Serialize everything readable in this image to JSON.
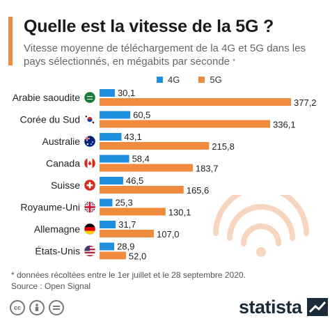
{
  "title": "Quelle est la vitesse de la 5G ?",
  "subtitle": "Vitesse moyenne de téléchargement de la 4G et 5G dans les pays sélectionnés, en mégabits par seconde",
  "subtitle_mark": "*",
  "colors": {
    "accent": "#f08a3c",
    "series_4g": "#1f8fe0",
    "series_5g": "#f08a3c"
  },
  "footnote": "* données récoltées entre le 1er juillet et le 28 septembre 2020.",
  "source": "Source : Open Signal",
  "brand": "statista",
  "chart_data": {
    "type": "bar",
    "orientation": "horizontal",
    "categories": [
      "Arabie saoudite",
      "Corée du Sud",
      "Australie",
      "Canada",
      "Suisse",
      "Royaume-Uni",
      "Allemagne",
      "États-Unis"
    ],
    "flags": [
      "saudi-arabia-flag-icon",
      "south-korea-flag-icon",
      "australia-flag-icon",
      "canada-flag-icon",
      "switzerland-flag-icon",
      "uk-flag-icon",
      "germany-flag-icon",
      "usa-flag-icon"
    ],
    "series": [
      {
        "name": "4G",
        "values": [
          30.1,
          60.5,
          43.1,
          58.4,
          46.5,
          25.3,
          31.7,
          28.9
        ],
        "labels": [
          "30,1",
          "60,5",
          "43,1",
          "58,4",
          "46,5",
          "25,3",
          "31,7",
          "28,9"
        ]
      },
      {
        "name": "5G",
        "values": [
          377.2,
          336.1,
          215.8,
          183.7,
          165.6,
          130.1,
          107.0,
          52.0
        ],
        "labels": [
          "377,2",
          "336,1",
          "215,8",
          "183,7",
          "165,6",
          "130,1",
          "107,0",
          "52,0"
        ]
      }
    ],
    "xlim": [
      0,
      400
    ],
    "legend": "top",
    "grid": false
  }
}
